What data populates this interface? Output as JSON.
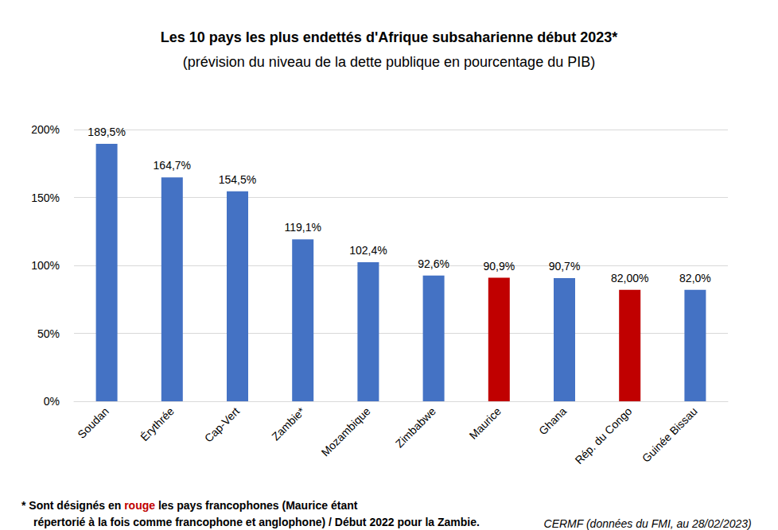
{
  "chart_data": {
    "type": "bar",
    "title": "Les 10 pays les plus endettés d'Afrique subsaharienne début 2023*",
    "subtitle": "(prévision du niveau de la dette publique en pourcentage du PIB)",
    "categories": [
      "Soudan",
      "Érythrée",
      "Cap-Vert",
      "Zambie*",
      "Mozambique",
      "Zimbabwe",
      "Maurice",
      "Ghana",
      "Rép. du Congo",
      "Guinée Bissau"
    ],
    "values": [
      189.5,
      164.7,
      154.5,
      119.1,
      102.4,
      92.6,
      90.9,
      90.7,
      82.0,
      82.0
    ],
    "value_labels": [
      "189,5%",
      "164,7%",
      "154,5%",
      "119,1%",
      "102,4%",
      "92,6%",
      "90,9%",
      "90,7%",
      "82,00%",
      "82,0%"
    ],
    "colors": [
      "#4472c4",
      "#4472c4",
      "#4472c4",
      "#4472c4",
      "#4472c4",
      "#4472c4",
      "#c00000",
      "#4472c4",
      "#c00000",
      "#4472c4"
    ],
    "ylim": [
      0,
      200
    ],
    "yticks": [
      {
        "value": 0,
        "label": "0%"
      },
      {
        "value": 50,
        "label": "50%"
      },
      {
        "value": 100,
        "label": "100%"
      },
      {
        "value": 150,
        "label": "150%"
      },
      {
        "value": 200,
        "label": "200%"
      }
    ],
    "grid": true,
    "data_labels": true,
    "footnote": [
      [
        "* Sont désignés en ",
        "rouge",
        " les pays francophones (Maurice étant"
      ],
      [
        "répertorié à la fois comme francophone et anglophone) / Début 2022 pour la Zambie."
      ]
    ],
    "source": "CERMF (données du FMI, au 28/02/2023)"
  }
}
